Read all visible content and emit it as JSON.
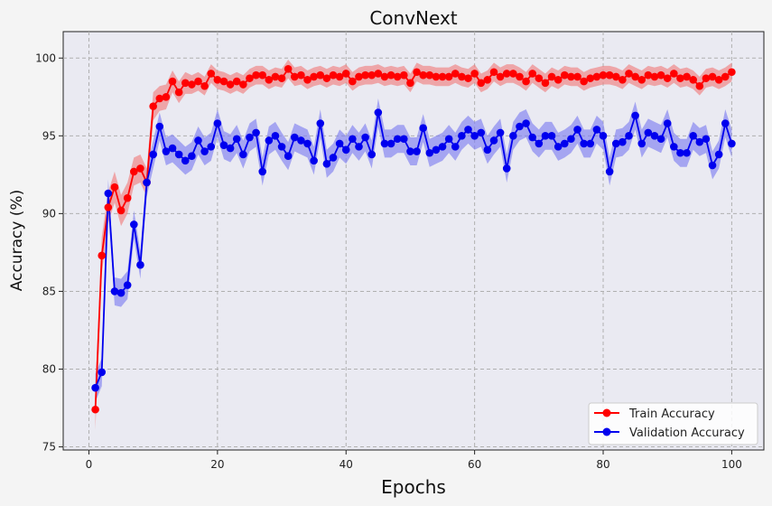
{
  "chart_data": {
    "type": "line",
    "title": "ConvNext",
    "xlabel": "Epochs",
    "ylabel": "Accuracy (%)",
    "xlim": [
      -4,
      105
    ],
    "ylim": [
      74.8,
      101.7
    ],
    "xticks": [
      0,
      20,
      40,
      60,
      80,
      100
    ],
    "yticks": [
      75,
      80,
      85,
      90,
      95,
      100
    ],
    "grid": true,
    "grid_style": "dashed",
    "legend_position": "lower-right",
    "x": [
      1,
      2,
      3,
      4,
      5,
      6,
      7,
      8,
      9,
      10,
      11,
      12,
      13,
      14,
      15,
      16,
      17,
      18,
      19,
      20,
      21,
      22,
      23,
      24,
      25,
      26,
      27,
      28,
      29,
      30,
      31,
      32,
      33,
      34,
      35,
      36,
      37,
      38,
      39,
      40,
      41,
      42,
      43,
      44,
      45,
      46,
      47,
      48,
      49,
      50,
      51,
      52,
      53,
      54,
      55,
      56,
      57,
      58,
      59,
      60,
      61,
      62,
      63,
      64,
      65,
      66,
      67,
      68,
      69,
      70,
      71,
      72,
      73,
      74,
      75,
      76,
      77,
      78,
      79,
      80,
      81,
      82,
      83,
      84,
      85,
      86,
      87,
      88,
      89,
      90,
      91,
      92,
      93,
      94,
      95,
      96,
      97,
      98,
      99,
      100
    ],
    "series": [
      {
        "name": "Train Accuracy",
        "color": "#ff0000",
        "band_color": "#f08080",
        "values": [
          77.4,
          87.3,
          90.4,
          91.7,
          90.2,
          91.0,
          92.7,
          92.9,
          92.0,
          96.9,
          97.4,
          97.5,
          98.5,
          97.8,
          98.4,
          98.3,
          98.5,
          98.2,
          99.0,
          98.6,
          98.5,
          98.3,
          98.5,
          98.3,
          98.7,
          98.9,
          98.9,
          98.6,
          98.8,
          98.7,
          99.3,
          98.8,
          98.9,
          98.6,
          98.8,
          98.9,
          98.7,
          98.9,
          98.8,
          99.0,
          98.5,
          98.8,
          98.9,
          98.9,
          99.0,
          98.8,
          98.9,
          98.8,
          98.9,
          98.4,
          99.1,
          98.9,
          98.9,
          98.8,
          98.8,
          98.8,
          99.0,
          98.8,
          98.7,
          99.0,
          98.4,
          98.6,
          99.1,
          98.8,
          99.0,
          99.0,
          98.8,
          98.5,
          99.0,
          98.7,
          98.4,
          98.8,
          98.6,
          98.9,
          98.8,
          98.8,
          98.5,
          98.7,
          98.8,
          98.9,
          98.9,
          98.8,
          98.6,
          99.0,
          98.8,
          98.6,
          98.9,
          98.8,
          98.9,
          98.7,
          99.0,
          98.7,
          98.8,
          98.6,
          98.2,
          98.7,
          98.8,
          98.6,
          98.8,
          99.1
        ],
        "band_halfwidth": [
          1.3,
          1.2,
          1.0,
          1.0,
          1.0,
          1.0,
          0.9,
          0.9,
          0.9,
          0.9,
          0.8,
          0.8,
          0.7,
          0.7,
          0.7,
          0.6,
          0.6,
          0.6,
          0.6,
          0.6,
          0.6,
          0.6,
          0.6,
          0.6,
          0.6,
          0.6,
          0.6,
          0.6,
          0.6,
          0.6,
          0.6,
          0.6,
          0.6,
          0.6,
          0.6,
          0.6,
          0.6,
          0.6,
          0.6,
          0.6,
          0.6,
          0.6,
          0.6,
          0.6,
          0.6,
          0.6,
          0.6,
          0.6,
          0.6,
          0.6,
          0.6,
          0.6,
          0.6,
          0.6,
          0.6,
          0.6,
          0.6,
          0.6,
          0.6,
          0.6,
          0.6,
          0.6,
          0.6,
          0.6,
          0.6,
          0.6,
          0.6,
          0.6,
          0.6,
          0.6,
          0.6,
          0.6,
          0.6,
          0.6,
          0.6,
          0.6,
          0.6,
          0.6,
          0.6,
          0.6,
          0.6,
          0.6,
          0.6,
          0.6,
          0.6,
          0.6,
          0.6,
          0.6,
          0.6,
          0.6,
          0.6,
          0.6,
          0.6,
          0.6,
          0.6,
          0.6,
          0.6,
          0.6,
          0.6,
          0.6
        ]
      },
      {
        "name": "Validation Accuracy",
        "color": "#0000ee",
        "band_color": "#8080f0",
        "values": [
          78.8,
          79.8,
          91.3,
          85.0,
          84.9,
          85.4,
          89.3,
          86.7,
          92.0,
          93.8,
          95.6,
          94.0,
          94.2,
          93.8,
          93.4,
          93.7,
          94.7,
          94.0,
          94.3,
          95.8,
          94.4,
          94.2,
          94.8,
          93.8,
          94.9,
          95.2,
          92.7,
          94.7,
          95.0,
          94.3,
          93.7,
          94.9,
          94.7,
          94.5,
          93.4,
          95.8,
          93.2,
          93.6,
          94.5,
          94.1,
          94.8,
          94.3,
          94.9,
          93.8,
          96.5,
          94.5,
          94.5,
          94.8,
          94.8,
          94.0,
          94.0,
          95.5,
          93.9,
          94.1,
          94.3,
          94.8,
          94.3,
          95.0,
          95.4,
          95.0,
          95.2,
          94.1,
          94.7,
          95.2,
          92.9,
          95.0,
          95.6,
          95.8,
          94.9,
          94.5,
          95.0,
          95.0,
          94.3,
          94.5,
          94.8,
          95.4,
          94.5,
          94.5,
          95.4,
          95.0,
          92.7,
          94.5,
          94.6,
          95.0,
          96.3,
          94.5,
          95.2,
          95.0,
          94.8,
          95.8,
          94.3,
          93.9,
          93.9,
          95.0,
          94.6,
          94.8,
          93.1,
          93.8,
          95.8,
          94.5
        ],
        "band_halfwidth": [
          0.9,
          0.9,
          0.9,
          0.9,
          0.9,
          0.9,
          0.9,
          0.9,
          0.9,
          0.9,
          0.9,
          0.9,
          0.9,
          0.9,
          0.9,
          0.9,
          0.9,
          0.9,
          0.9,
          0.9,
          0.9,
          0.9,
          0.9,
          0.9,
          0.9,
          0.9,
          0.9,
          0.9,
          0.9,
          0.9,
          0.9,
          0.9,
          0.9,
          0.9,
          0.9,
          0.9,
          0.9,
          0.9,
          0.9,
          0.9,
          0.9,
          0.9,
          0.9,
          0.9,
          0.9,
          0.9,
          0.9,
          0.9,
          0.9,
          0.9,
          0.9,
          0.9,
          0.9,
          0.9,
          0.9,
          0.9,
          0.9,
          0.9,
          0.9,
          0.9,
          0.9,
          0.9,
          0.9,
          0.9,
          0.9,
          0.9,
          0.9,
          0.9,
          0.9,
          0.9,
          0.9,
          0.9,
          0.9,
          0.9,
          0.9,
          0.9,
          0.9,
          0.9,
          0.9,
          0.9,
          0.9,
          0.9,
          0.9,
          0.9,
          0.9,
          0.9,
          0.9,
          0.9,
          0.9,
          0.9,
          0.9,
          0.9,
          0.9,
          0.9,
          0.9,
          0.9,
          0.9,
          0.9,
          0.9,
          0.9
        ]
      }
    ]
  }
}
